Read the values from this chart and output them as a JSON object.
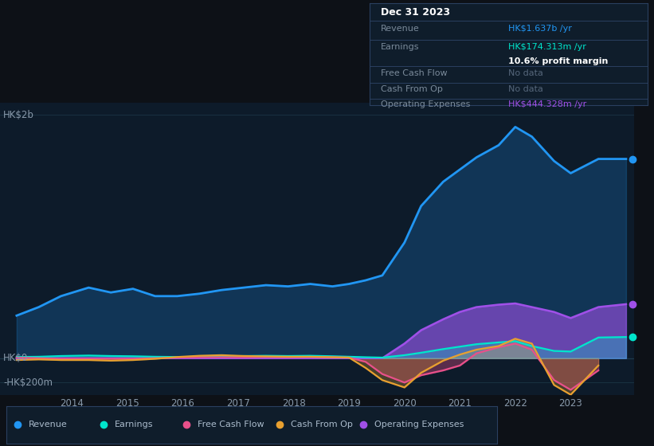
{
  "bg_color": "#0d1117",
  "chart_bg": "#0d1b2a",
  "text_color": "#8899aa",
  "title_color": "#ffffff",
  "ylabel_top": "HK$2b",
  "ylabel_zero": "HK$0",
  "ylabel_neg": "-HK$200m",
  "ylim_min": -300,
  "ylim_max": 2100,
  "series_colors": {
    "Revenue": "#2196f3",
    "Earnings": "#00e5cc",
    "FreeCashFlow": "#e8508a",
    "CashFromOp": "#e8a030",
    "OperatingExpenses": "#a050e8"
  },
  "x": [
    2013.0,
    2013.4,
    2013.8,
    2014.3,
    2014.7,
    2015.1,
    2015.5,
    2015.9,
    2016.3,
    2016.7,
    2017.1,
    2017.5,
    2017.9,
    2018.3,
    2018.7,
    2019.0,
    2019.3,
    2019.6,
    2020.0,
    2020.3,
    2020.7,
    2021.0,
    2021.3,
    2021.7,
    2022.0,
    2022.3,
    2022.7,
    2023.0,
    2023.5,
    2024.0
  ],
  "revenue": [
    350,
    420,
    510,
    580,
    540,
    570,
    510,
    510,
    530,
    560,
    580,
    600,
    590,
    610,
    590,
    610,
    640,
    680,
    950,
    1250,
    1450,
    1550,
    1650,
    1750,
    1900,
    1820,
    1620,
    1520,
    1637,
    1637
  ],
  "earnings": [
    10,
    12,
    18,
    22,
    18,
    16,
    12,
    10,
    12,
    15,
    18,
    20,
    18,
    20,
    16,
    12,
    8,
    5,
    25,
    45,
    75,
    95,
    115,
    130,
    140,
    100,
    60,
    55,
    170,
    174
  ],
  "free_cash_flow": [
    5,
    0,
    -5,
    -5,
    -5,
    -5,
    0,
    5,
    8,
    8,
    8,
    10,
    8,
    10,
    8,
    5,
    -30,
    -130,
    -200,
    -140,
    -100,
    -60,
    40,
    90,
    120,
    70,
    -180,
    -260,
    -100,
    null
  ],
  "cash_from_op": [
    -15,
    -10,
    -15,
    -15,
    -20,
    -15,
    -5,
    10,
    20,
    25,
    18,
    15,
    12,
    12,
    8,
    5,
    -80,
    -180,
    -240,
    -120,
    -20,
    30,
    70,
    100,
    160,
    120,
    -220,
    -300,
    -60,
    null
  ],
  "operating_expenses": [
    0,
    0,
    0,
    0,
    0,
    0,
    0,
    0,
    0,
    0,
    0,
    0,
    0,
    0,
    0,
    0,
    0,
    0,
    120,
    230,
    320,
    380,
    420,
    440,
    450,
    420,
    380,
    330,
    420,
    444
  ],
  "tooltip": {
    "date": "Dec 31 2023",
    "revenue_val": "HK$1.637b",
    "earnings_val": "HK$174.313m",
    "profit_margin": "10.6%",
    "free_cash_flow": "No data",
    "cash_from_op": "No data",
    "op_expenses": "HK$444.328m"
  },
  "legend": [
    {
      "label": "Revenue",
      "color": "#2196f3"
    },
    {
      "label": "Earnings",
      "color": "#00e5cc"
    },
    {
      "label": "Free Cash Flow",
      "color": "#e8508a"
    },
    {
      "label": "Cash From Op",
      "color": "#e8a030"
    },
    {
      "label": "Operating Expenses",
      "color": "#a050e8"
    }
  ],
  "xtick_years": [
    2014,
    2015,
    2016,
    2017,
    2018,
    2019,
    2020,
    2021,
    2022,
    2023
  ]
}
